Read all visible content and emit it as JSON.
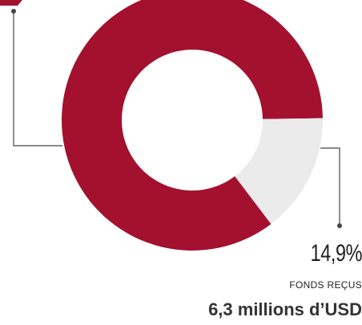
{
  "chart_data": {
    "type": "pie",
    "donut": true,
    "slices": [
      {
        "label": "",
        "value": 85.1,
        "color": "#a3112f"
      },
      {
        "label": "Fonds reçus",
        "value": 14.9,
        "color": "#ebebeb"
      }
    ]
  },
  "callout": {
    "percent": "14,9%",
    "caption": "FONDS REÇUS",
    "amount": "6,3 millions d’USD"
  }
}
